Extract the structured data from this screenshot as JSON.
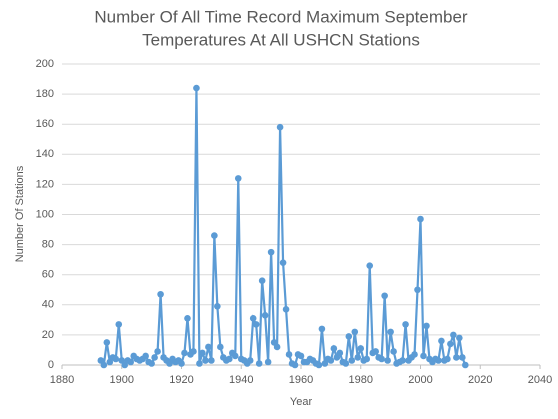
{
  "chart_data": {
    "type": "line",
    "title": [
      "Number Of All Time Record Maximum September",
      "Temperatures At All USHCN Stations"
    ],
    "x_label": "Year",
    "y_label": "Number Of Stations",
    "xlim": [
      1880,
      2040
    ],
    "xticks": [
      1880,
      1900,
      1920,
      1940,
      1960,
      1980,
      2000,
      2020,
      2040
    ],
    "ylim": [
      0,
      200
    ],
    "yticks": [
      0,
      20,
      40,
      60,
      80,
      100,
      120,
      140,
      160,
      180,
      200
    ],
    "grid": true,
    "series": [
      {
        "color": "#5b9bd5",
        "x": [
          1893,
          1894,
          1895,
          1896,
          1897,
          1898,
          1899,
          1900,
          1901,
          1902,
          1903,
          1904,
          1905,
          1906,
          1907,
          1908,
          1909,
          1910,
          1911,
          1912,
          1913,
          1914,
          1915,
          1916,
          1917,
          1918,
          1919,
          1920,
          1921,
          1922,
          1923,
          1924,
          1925,
          1926,
          1927,
          1928,
          1929,
          1930,
          1931,
          1932,
          1933,
          1934,
          1935,
          1936,
          1937,
          1938,
          1939,
          1940,
          1941,
          1942,
          1943,
          1944,
          1945,
          1946,
          1947,
          1948,
          1949,
          1950,
          1951,
          1952,
          1953,
          1954,
          1955,
          1956,
          1957,
          1958,
          1959,
          1960,
          1961,
          1962,
          1963,
          1964,
          1965,
          1966,
          1967,
          1968,
          1969,
          1970,
          1971,
          1972,
          1973,
          1974,
          1975,
          1976,
          1977,
          1978,
          1979,
          1980,
          1981,
          1982,
          1983,
          1984,
          1985,
          1986,
          1987,
          1988,
          1989,
          1990,
          1991,
          1992,
          1993,
          1994,
          1995,
          1996,
          1997,
          1998,
          1999,
          2000,
          2001,
          2002,
          2003,
          2004,
          2005,
          2006,
          2007,
          2008,
          2009,
          2010,
          2011,
          2012,
          2013,
          2014,
          2015
        ],
        "values": [
          3,
          0,
          15,
          2,
          5,
          4,
          27,
          3,
          0,
          3,
          2,
          6,
          4,
          3,
          4,
          6,
          2,
          1,
          5,
          9,
          47,
          5,
          3,
          1,
          4,
          2,
          3,
          1,
          8,
          31,
          7,
          9,
          184,
          1,
          8,
          3,
          12,
          3,
          86,
          39,
          12,
          5,
          3,
          4,
          8,
          6,
          124,
          4,
          3,
          1,
          3,
          31,
          27,
          1,
          56,
          33,
          2,
          75,
          15,
          12,
          158,
          68,
          37,
          7,
          1,
          0,
          7,
          6,
          2,
          2,
          4,
          3,
          1,
          0,
          24,
          1,
          4,
          3,
          11,
          5,
          8,
          2,
          1,
          19,
          3,
          22,
          5,
          11,
          3,
          4,
          66,
          8,
          9,
          5,
          4,
          46,
          3,
          22,
          9,
          1,
          2,
          3,
          27,
          3,
          5,
          7,
          50,
          97,
          6,
          26,
          4,
          2,
          4,
          3,
          16,
          3,
          4,
          14,
          20,
          5,
          18,
          5,
          0
        ]
      }
    ]
  }
}
